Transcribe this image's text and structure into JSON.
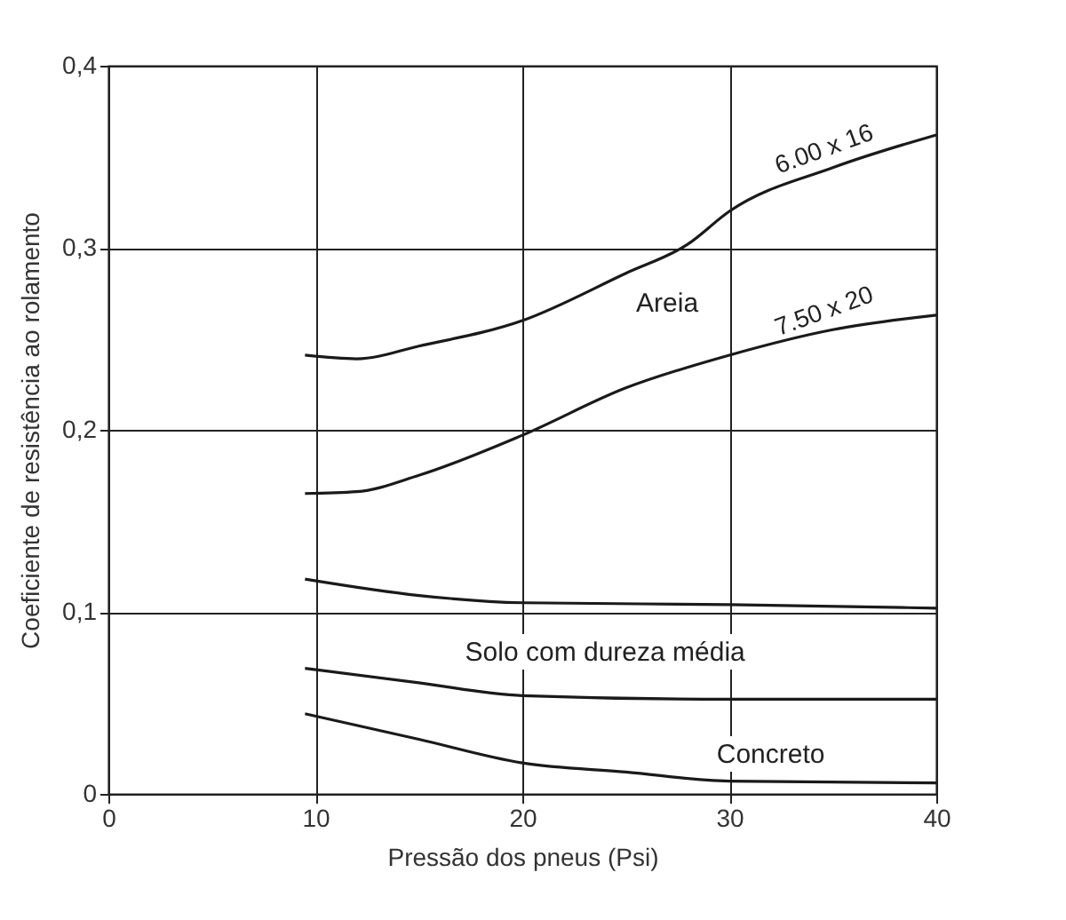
{
  "chart_data": {
    "type": "line",
    "xlabel": "Pressão dos pneus (Psi)",
    "ylabel": "Coeficiente de resistência ao rolamento",
    "xlim": [
      0,
      40
    ],
    "xticks": [
      0,
      10,
      20,
      30,
      40
    ],
    "ylim": [
      0,
      0.4
    ],
    "yticks": [
      {
        "value": 0,
        "label": "0"
      },
      {
        "value": 0.1,
        "label": "0,1"
      },
      {
        "value": 0.2,
        "label": "0,2"
      },
      {
        "value": 0.3,
        "label": "0,3"
      },
      {
        "value": 0.4,
        "label": "0,4"
      }
    ],
    "grid": true,
    "marker": "none",
    "line_style": "solid",
    "series": [
      {
        "name": "6.00 x 16",
        "color": "#1a1a1a",
        "x": [
          9.5,
          12,
          15,
          20,
          25,
          28,
          30,
          35,
          40
        ],
        "values": [
          0.241,
          0.239,
          0.246,
          0.26,
          0.286,
          0.302,
          0.32,
          0.344,
          0.362
        ]
      },
      {
        "name": "7.50 x 20",
        "color": "#1a1a1a",
        "x": [
          9.5,
          12,
          15,
          20,
          25,
          30,
          35,
          40
        ],
        "values": [
          0.165,
          0.166,
          0.175,
          0.197,
          0.223,
          0.241,
          0.255,
          0.263
        ]
      },
      {
        "color": "#1a1a1a",
        "x": [
          9.5,
          15,
          20,
          30,
          40
        ],
        "values": [
          0.118,
          0.109,
          0.105,
          0.104,
          0.102
        ]
      },
      {
        "color": "#1a1a1a",
        "x": [
          9.5,
          15,
          20,
          30,
          40
        ],
        "values": [
          0.069,
          0.061,
          0.054,
          0.052,
          0.052
        ]
      },
      {
        "color": "#1a1a1a",
        "x": [
          9.5,
          15,
          20,
          25,
          30,
          40
        ],
        "values": [
          0.044,
          0.03,
          0.017,
          0.012,
          0.007,
          0.006
        ]
      }
    ],
    "annotations": [
      "Areia",
      "Solo com dureza média",
      "Concreto"
    ]
  }
}
